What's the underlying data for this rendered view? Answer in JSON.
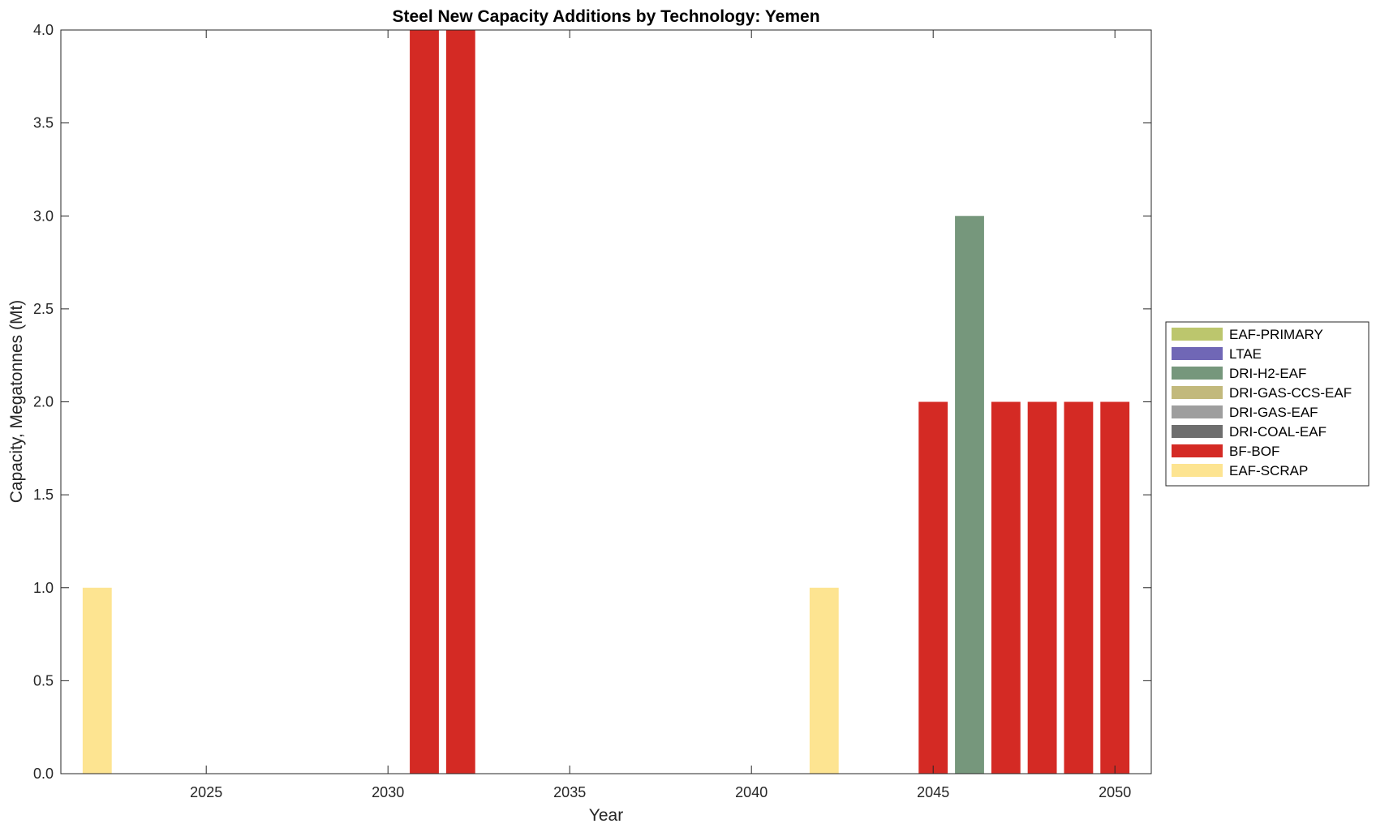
{
  "chart_data": {
    "type": "bar",
    "stacked": true,
    "title": "Steel New Capacity Additions by Technology: Yemen",
    "xlabel": "Year",
    "ylabel": "Capacity, Megatonnes (Mt)",
    "xlim": [
      2021,
      2051
    ],
    "ylim": [
      0,
      4
    ],
    "x_ticks": [
      2025,
      2030,
      2035,
      2040,
      2045,
      2050
    ],
    "y_ticks": [
      "0.0",
      "0.5",
      "1.0",
      "1.5",
      "2.0",
      "2.5",
      "3.0",
      "3.5",
      "4.0"
    ],
    "grid": false,
    "legend_position": "right",
    "categories": [
      2022,
      2023,
      2024,
      2025,
      2026,
      2027,
      2028,
      2029,
      2030,
      2031,
      2032,
      2033,
      2034,
      2035,
      2036,
      2037,
      2038,
      2039,
      2040,
      2041,
      2042,
      2043,
      2044,
      2045,
      2046,
      2047,
      2048,
      2049,
      2050
    ],
    "series": [
      {
        "name": "EAF-SCRAP",
        "color": "#FDE491",
        "values": [
          1,
          0,
          0,
          0,
          0,
          0,
          0,
          0,
          0,
          0,
          0,
          0,
          0,
          0,
          0,
          0,
          0,
          0,
          0,
          0,
          1,
          0,
          0,
          0,
          0,
          0,
          0,
          0,
          0
        ]
      },
      {
        "name": "BF-BOF",
        "color": "#D42A24",
        "values": [
          0,
          0,
          0,
          0,
          0,
          0,
          0,
          0,
          0,
          4,
          4,
          0,
          0,
          0,
          0,
          0,
          0,
          0,
          0,
          0,
          0,
          0,
          0,
          2,
          0,
          2,
          2,
          2,
          2
        ]
      },
      {
        "name": "DRI-COAL-EAF",
        "color": "#6E6E6E",
        "values": [
          0,
          0,
          0,
          0,
          0,
          0,
          0,
          0,
          0,
          0,
          0,
          0,
          0,
          0,
          0,
          0,
          0,
          0,
          0,
          0,
          0,
          0,
          0,
          0,
          0,
          0,
          0,
          0,
          0
        ]
      },
      {
        "name": "DRI-GAS-EAF",
        "color": "#9E9E9E",
        "values": [
          0,
          0,
          0,
          0,
          0,
          0,
          0,
          0,
          0,
          0,
          0,
          0,
          0,
          0,
          0,
          0,
          0,
          0,
          0,
          0,
          0,
          0,
          0,
          0,
          0,
          0,
          0,
          0,
          0
        ]
      },
      {
        "name": "DRI-GAS-CCS-EAF",
        "color": "#C2B97C",
        "values": [
          0,
          0,
          0,
          0,
          0,
          0,
          0,
          0,
          0,
          0,
          0,
          0,
          0,
          0,
          0,
          0,
          0,
          0,
          0,
          0,
          0,
          0,
          0,
          0,
          0,
          0,
          0,
          0,
          0
        ]
      },
      {
        "name": "DRI-H2-EAF",
        "color": "#76977C",
        "values": [
          0,
          0,
          0,
          0,
          0,
          0,
          0,
          0,
          0,
          0,
          0,
          0,
          0,
          0,
          0,
          0,
          0,
          0,
          0,
          0,
          0,
          0,
          0,
          0,
          3,
          0,
          0,
          0,
          0
        ]
      },
      {
        "name": "LTAE",
        "color": "#7067B6",
        "values": [
          0,
          0,
          0,
          0,
          0,
          0,
          0,
          0,
          0,
          0,
          0,
          0,
          0,
          0,
          0,
          0,
          0,
          0,
          0,
          0,
          0,
          0,
          0,
          0,
          0,
          0,
          0,
          0,
          0
        ]
      },
      {
        "name": "EAF-PRIMARY",
        "color": "#BCC66D",
        "values": [
          0,
          0,
          0,
          0,
          0,
          0,
          0,
          0,
          0,
          0,
          0,
          0,
          0,
          0,
          0,
          0,
          0,
          0,
          0,
          0,
          0,
          0,
          0,
          0,
          0,
          0,
          0,
          0,
          0
        ]
      }
    ],
    "legend_order": [
      "EAF-PRIMARY",
      "LTAE",
      "DRI-H2-EAF",
      "DRI-GAS-CCS-EAF",
      "DRI-GAS-EAF",
      "DRI-COAL-EAF",
      "BF-BOF",
      "EAF-SCRAP"
    ]
  }
}
